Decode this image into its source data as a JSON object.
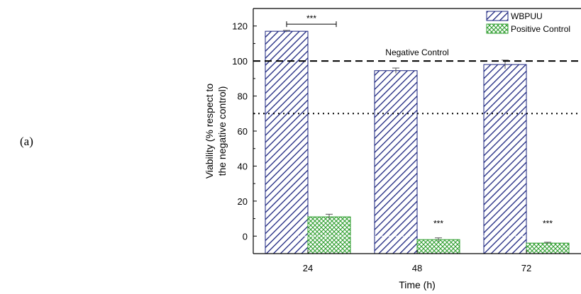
{
  "panel_label": "(a)",
  "chart_data": {
    "type": "bar",
    "categories": [
      "24",
      "48",
      "72"
    ],
    "xlabel": "Time (h)",
    "ylabel": "Viability (% respect to the negative control)",
    "ylabel_lines": [
      "Viability (% respect to",
      "the negative control)"
    ],
    "ylim": [
      -10,
      130
    ],
    "yticks": [
      0,
      20,
      40,
      60,
      80,
      100,
      120
    ],
    "series": [
      {
        "name": "WBPUU",
        "values": [
          117,
          94.5,
          98
        ],
        "errors": [
          0.5,
          1.5,
          2.5
        ],
        "color": "#1a237e",
        "pattern": "diagonal-hatch"
      },
      {
        "name": "Positive Control",
        "values": [
          11,
          -2,
          -4
        ],
        "errors": [
          1.5,
          1.0,
          0.5
        ],
        "color": "#2e9e2e",
        "pattern": "cross-hatch"
      }
    ],
    "reference_lines": [
      {
        "value": 100,
        "style": "dashed",
        "label": "Negative Control"
      },
      {
        "value": 70,
        "style": "dotted",
        "label": ""
      }
    ],
    "annotations": [
      {
        "text": "***",
        "category": "24",
        "type": "bracket"
      },
      {
        "text": "***",
        "category": "48",
        "series": "Positive Control"
      },
      {
        "text": "***",
        "category": "72",
        "series": "Positive Control"
      }
    ],
    "legend_position": "top-right",
    "grid": false
  }
}
